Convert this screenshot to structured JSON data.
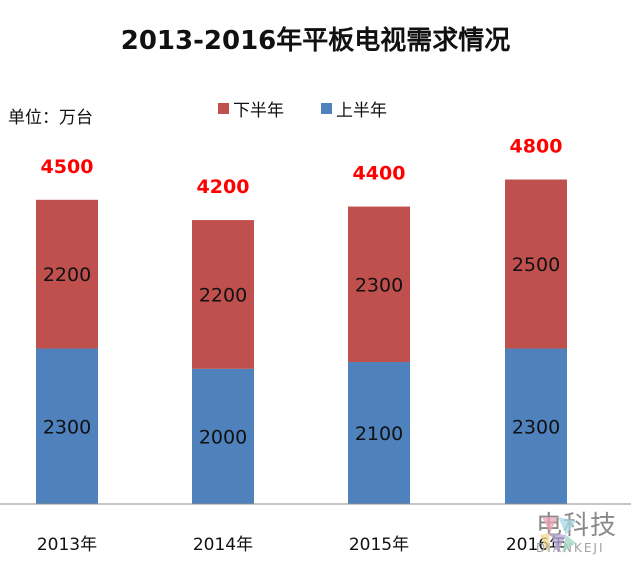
{
  "chart_data": {
    "type": "bar",
    "stacked": true,
    "title": "2013-2016年平板电视需求情况",
    "unit_label": "单位：万台",
    "categories": [
      "2013年",
      "2014年",
      "2015年",
      "2016年"
    ],
    "series": [
      {
        "name": "上半年",
        "color": "#4f81bd",
        "values": [
          2300,
          2000,
          2100,
          2300
        ]
      },
      {
        "name": "下半年",
        "color": "#c0504d",
        "values": [
          2200,
          2200,
          2300,
          2500
        ]
      }
    ],
    "totals": [
      "4500",
      "4200",
      "4400",
      "4800"
    ],
    "totals_color": "#ff0000",
    "legend_order": [
      "下半年",
      "上半年"
    ],
    "legend_position": "top-center",
    "grid": false,
    "ylim": [
      0,
      5200
    ]
  },
  "watermark": {
    "text_cn": "电科技",
    "text_en": "DIANKEJI",
    "logo_colors": [
      "#e8a3b6",
      "#a9d8e6",
      "#f5d78e",
      "#b9a7d8",
      "#9fd6c4"
    ]
  }
}
